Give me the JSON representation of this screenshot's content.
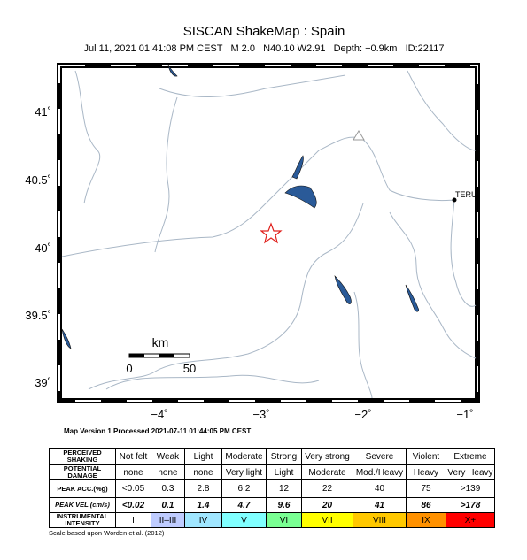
{
  "header": {
    "title": "SISCAN ShakeMap : Spain",
    "subtitle": "Jul 11, 2021 01:41:08 PM CEST   M 2.0   N40.10 W2.91   Depth: −0.9km   ID:22117"
  },
  "map": {
    "lat_labels": [
      "41˚",
      "40.5˚",
      "40˚",
      "39.5˚",
      "39˚"
    ],
    "lon_labels": [
      "−4˚",
      "−3˚",
      "−2˚",
      "−1˚"
    ],
    "station": "TERU",
    "scale_bar": {
      "unit": "km",
      "labels": [
        "0",
        "50"
      ]
    }
  },
  "footer": "Map Version 1 Processed 2021-07-11 01:44:05 PM CEST",
  "legend": {
    "rows": [
      {
        "label": "PERCEIVED SHAKING",
        "cells": [
          "Not felt",
          "Weak",
          "Light",
          "Moderate",
          "Strong",
          "Very strong",
          "Severe",
          "Violent",
          "Extreme"
        ]
      },
      {
        "label": "POTENTIAL DAMAGE",
        "cells": [
          "none",
          "none",
          "none",
          "Very light",
          "Light",
          "Moderate",
          "Mod./Heavy",
          "Heavy",
          "Very Heavy"
        ]
      },
      {
        "label": "PEAK ACC.(%g)",
        "cells": [
          "<0.05",
          0.3,
          2.8,
          6.2,
          12,
          22,
          40,
          75,
          ">139"
        ]
      },
      {
        "label": "PEAK VEL.(cm/s)",
        "cells": [
          "<0.02",
          0.1,
          1.4,
          4.7,
          9.6,
          20,
          41,
          86,
          ">178"
        ]
      },
      {
        "label": "INSTRUMENTAL INTENSITY",
        "cells": [
          "I",
          "II–III",
          "IV",
          "V",
          "VI",
          "VII",
          "VIII",
          "IX",
          "X+"
        ]
      }
    ]
  },
  "caption": "Scale based upon Worden et al. (2012)"
}
